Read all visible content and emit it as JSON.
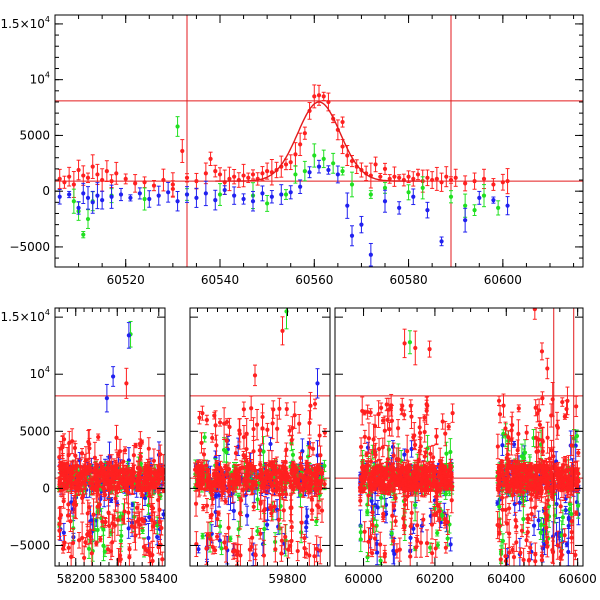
{
  "chart_data": [
    {
      "type": "scatter",
      "title": "",
      "xlabel": "",
      "ylabel": "",
      "xlim": [
        60505,
        60617
      ],
      "ylim": [
        -6800,
        15800
      ],
      "x_ticks": [
        60520,
        60540,
        60560,
        60580,
        60600
      ],
      "x_tick_labels": [
        "60520",
        "60540",
        "60560",
        "60580",
        "60600"
      ],
      "y_ticks": [
        -5000,
        0,
        5000,
        10000,
        15000
      ],
      "y_tick_labels": [
        "−5000",
        "0",
        "5000",
        "10⁴",
        "1.5×10⁴"
      ],
      "hlines": [
        8100,
        900
      ],
      "vlines": [
        60533,
        60589
      ],
      "line_color": "#e31a1c",
      "fit_curve": {
        "type": "gaussian",
        "center": 60561,
        "peak": 8000,
        "base": 900,
        "sigma": 4.5
      },
      "series": [
        {
          "color": "#ff2020",
          "points": [
            [
              60506,
              1100
            ],
            [
              60507,
              800
            ],
            [
              60508,
              1300
            ],
            [
              60509,
              600
            ],
            [
              60510,
              1900
            ],
            [
              60511,
              1400
            ],
            [
              60512,
              1200
            ],
            [
              60513,
              2200
            ],
            [
              60514,
              1500
            ],
            [
              60515,
              1000
            ],
            [
              60516,
              1800
            ],
            [
              60517,
              900
            ],
            [
              60518,
              1600
            ],
            [
              60520,
              1100
            ],
            [
              60522,
              700
            ],
            [
              60524,
              800
            ],
            [
              60526,
              500
            ],
            [
              60528,
              1000
            ],
            [
              60530,
              600
            ],
            [
              60532,
              3600
            ],
            [
              60533,
              1200
            ],
            [
              60535,
              900
            ],
            [
              60537,
              1600
            ],
            [
              60538,
              2900
            ],
            [
              60539,
              1800
            ],
            [
              60540,
              1500
            ],
            [
              60541,
              800
            ],
            [
              60542,
              1100
            ],
            [
              60543,
              1300
            ],
            [
              60544,
              1000
            ],
            [
              60545,
              1400
            ],
            [
              60546,
              1200
            ],
            [
              60547,
              1500
            ],
            [
              60548,
              1100
            ],
            [
              60549,
              1600
            ],
            [
              60550,
              1800
            ],
            [
              60551,
              1700
            ],
            [
              60552,
              1900
            ],
            [
              60553,
              2200
            ],
            [
              60554,
              2400
            ],
            [
              60555,
              2600
            ],
            [
              60556,
              3300
            ],
            [
              60557,
              4200
            ],
            [
              60558,
              5200
            ],
            [
              60559,
              7200
            ],
            [
              60560,
              8500
            ],
            [
              60561,
              8600
            ],
            [
              60562,
              8500
            ],
            [
              60563,
              8000
            ],
            [
              60564,
              6500
            ],
            [
              60565,
              5500
            ],
            [
              60566,
              4000
            ],
            [
              60567,
              3200
            ],
            [
              60568,
              2700
            ],
            [
              60569,
              2200
            ],
            [
              60570,
              1900
            ],
            [
              60571,
              1600
            ],
            [
              60572,
              1400
            ],
            [
              60573,
              2400
            ],
            [
              60574,
              1300
            ],
            [
              60575,
              2000
            ],
            [
              60576,
              1100
            ],
            [
              60577,
              1300
            ],
            [
              60578,
              1200
            ],
            [
              60579,
              1000
            ],
            [
              60580,
              1300
            ],
            [
              60581,
              1100
            ],
            [
              60582,
              1500
            ],
            [
              60583,
              900
            ],
            [
              60584,
              1200
            ],
            [
              60585,
              1000
            ],
            [
              60586,
              1100
            ],
            [
              60587,
              800
            ],
            [
              60588,
              1300
            ],
            [
              60589,
              1000
            ],
            [
              60590,
              1200
            ],
            [
              60592,
              700
            ],
            [
              60594,
              900
            ],
            [
              60596,
              1100
            ],
            [
              60598,
              600
            ],
            [
              60600,
              800
            ],
            [
              60601,
              900
            ],
            [
              60566,
              6200
            ],
            [
              60530,
              200
            ]
          ]
        },
        {
          "color": "#20e020",
          "points": [
            [
              60509,
              -900
            ],
            [
              60510,
              -1800
            ],
            [
              60511,
              -3900
            ],
            [
              60512,
              -2500
            ],
            [
              60513,
              -900
            ],
            [
              60517,
              -400
            ],
            [
              60524,
              -700
            ],
            [
              60531,
              5800
            ],
            [
              60533,
              -300
            ],
            [
              60540,
              -300
            ],
            [
              60547,
              -400
            ],
            [
              60550,
              -1100
            ],
            [
              60554,
              -300
            ],
            [
              60556,
              1500
            ],
            [
              60558,
              1800
            ],
            [
              60560,
              3200
            ],
            [
              60562,
              2900
            ],
            [
              60564,
              2500
            ],
            [
              60566,
              1800
            ],
            [
              60568,
              600
            ],
            [
              60572,
              -300
            ],
            [
              60575,
              300
            ],
            [
              60580,
              -100
            ],
            [
              60583,
              300
            ],
            [
              60589,
              -500
            ],
            [
              60592,
              -1300
            ],
            [
              60594,
              -1700
            ],
            [
              60596,
              -400
            ],
            [
              60599,
              -1500
            ]
          ]
        },
        {
          "color": "#2020f0",
          "points": [
            [
              60506,
              -500
            ],
            [
              60508,
              -300
            ],
            [
              60510,
              -1500
            ],
            [
              60511,
              -200
            ],
            [
              60512,
              -600
            ],
            [
              60513,
              -1000
            ],
            [
              60514,
              -400
            ],
            [
              60515,
              -800
            ],
            [
              60517,
              -500
            ],
            [
              60519,
              -300
            ],
            [
              60521,
              -600
            ],
            [
              60523,
              -200
            ],
            [
              60525,
              -700
            ],
            [
              60527,
              -400
            ],
            [
              60529,
              -100
            ],
            [
              60531,
              -900
            ],
            [
              60533,
              -300
            ],
            [
              60535,
              -600
            ],
            [
              60537,
              -200
            ],
            [
              60539,
              -800
            ],
            [
              60541,
              100
            ],
            [
              60543,
              -400
            ],
            [
              60545,
              -700
            ],
            [
              60547,
              -900
            ],
            [
              60549,
              -200
            ],
            [
              60551,
              -500
            ],
            [
              60553,
              -300
            ],
            [
              60555,
              -100
            ],
            [
              60557,
              400
            ],
            [
              60559,
              1700
            ],
            [
              60561,
              2200
            ],
            [
              60563,
              1900
            ],
            [
              60565,
              1500
            ],
            [
              60567,
              -1300
            ],
            [
              60568,
              -4000
            ],
            [
              60570,
              -3000
            ],
            [
              60572,
              -5700
            ],
            [
              60575,
              -900
            ],
            [
              60578,
              -1500
            ],
            [
              60581,
              -500
            ],
            [
              60584,
              -1700
            ],
            [
              60587,
              -4500
            ],
            [
              60592,
              -2600
            ],
            [
              60595,
              -600
            ],
            [
              60598,
              -800
            ],
            [
              60601,
              -1300
            ]
          ]
        }
      ]
    },
    {
      "type": "scatter",
      "title": "",
      "xlabel": "",
      "ylabel": "",
      "broken_x_axis": true,
      "segments": [
        {
          "xlim": [
            58150,
            58415
          ],
          "x_ticks": [
            58200,
            58300,
            58400
          ],
          "x_tick_labels": [
            "58200",
            "58300",
            "58400"
          ],
          "clusters": [
            {
              "x0": 58160,
              "x1": 58412,
              "red": [
                -6500,
                4500
              ],
              "green": [
                -6000,
                2500
              ],
              "blue": [
                -4500,
                3000
              ]
            }
          ],
          "outliers": [
            [
              58322,
              9200,
              "#ff2020"
            ],
            [
              58332,
              13500,
              "#20e020"
            ],
            [
              58328,
              13400,
              "#2020f0"
            ],
            [
              58290,
              9800,
              "#2020f0"
            ],
            [
              58275,
              7900,
              "#2020f0"
            ]
          ]
        },
        {
          "xlim": [
            59605,
            59885
          ],
          "x_ticks": [
            59800
          ],
          "x_tick_labels": [
            "59800"
          ],
          "clusters": [
            {
              "x0": 59615,
              "x1": 59875,
              "red": [
                -6000,
                7500
              ],
              "green": [
                -5500,
                4500
              ],
              "blue": [
                -5800,
                4200
              ]
            }
          ],
          "outliers": [
            [
              59798,
              15500,
              "#20e020"
            ],
            [
              59790,
              13800,
              "#ff2020"
            ],
            [
              59735,
              9900,
              "#ff2020"
            ],
            [
              59860,
              9200,
              "#2020f0"
            ]
          ]
        },
        {
          "xlim": [
            59920,
            60615
          ],
          "x_ticks": [
            60000,
            60200,
            60400,
            60600
          ],
          "x_tick_labels": [
            "60000",
            "60200",
            "60400",
            "60600"
          ],
          "clusters": [
            {
              "x0": 59990,
              "x1": 60250,
              "red": [
                -6000,
                7500
              ],
              "green": [
                -6500,
                4000
              ],
              "blue": [
                -6000,
                4000
              ]
            },
            {
              "x0": 60375,
              "x1": 60603,
              "red": [
                -6500,
                8000
              ],
              "green": [
                -6000,
                5000
              ],
              "blue": [
                -6000,
                4000
              ]
            }
          ],
          "outliers": [
            [
              60115,
              12700,
              "#ff2020"
            ],
            [
              60145,
              12300,
              "#ff2020"
            ],
            [
              60130,
              12800,
              "#20e020"
            ],
            [
              60185,
              12200,
              "#ff2020"
            ],
            [
              60480,
              15700,
              "#ff2020"
            ],
            [
              60500,
              12000,
              "#ff2020"
            ],
            [
              60515,
              10500,
              "#ff2020"
            ],
            [
              60530,
              7800,
              "#ff2020"
            ]
          ]
        }
      ],
      "ylim": [
        -6800,
        15800
      ],
      "y_ticks": [
        -5000,
        0,
        5000,
        10000,
        15000
      ],
      "y_tick_labels": [
        "−5000",
        "0",
        "5000",
        "10⁴",
        "1.5×10⁴"
      ],
      "hlines": [
        8100,
        900
      ],
      "vlines": [
        60533,
        60589
      ],
      "line_color": "#e31a1c"
    }
  ]
}
